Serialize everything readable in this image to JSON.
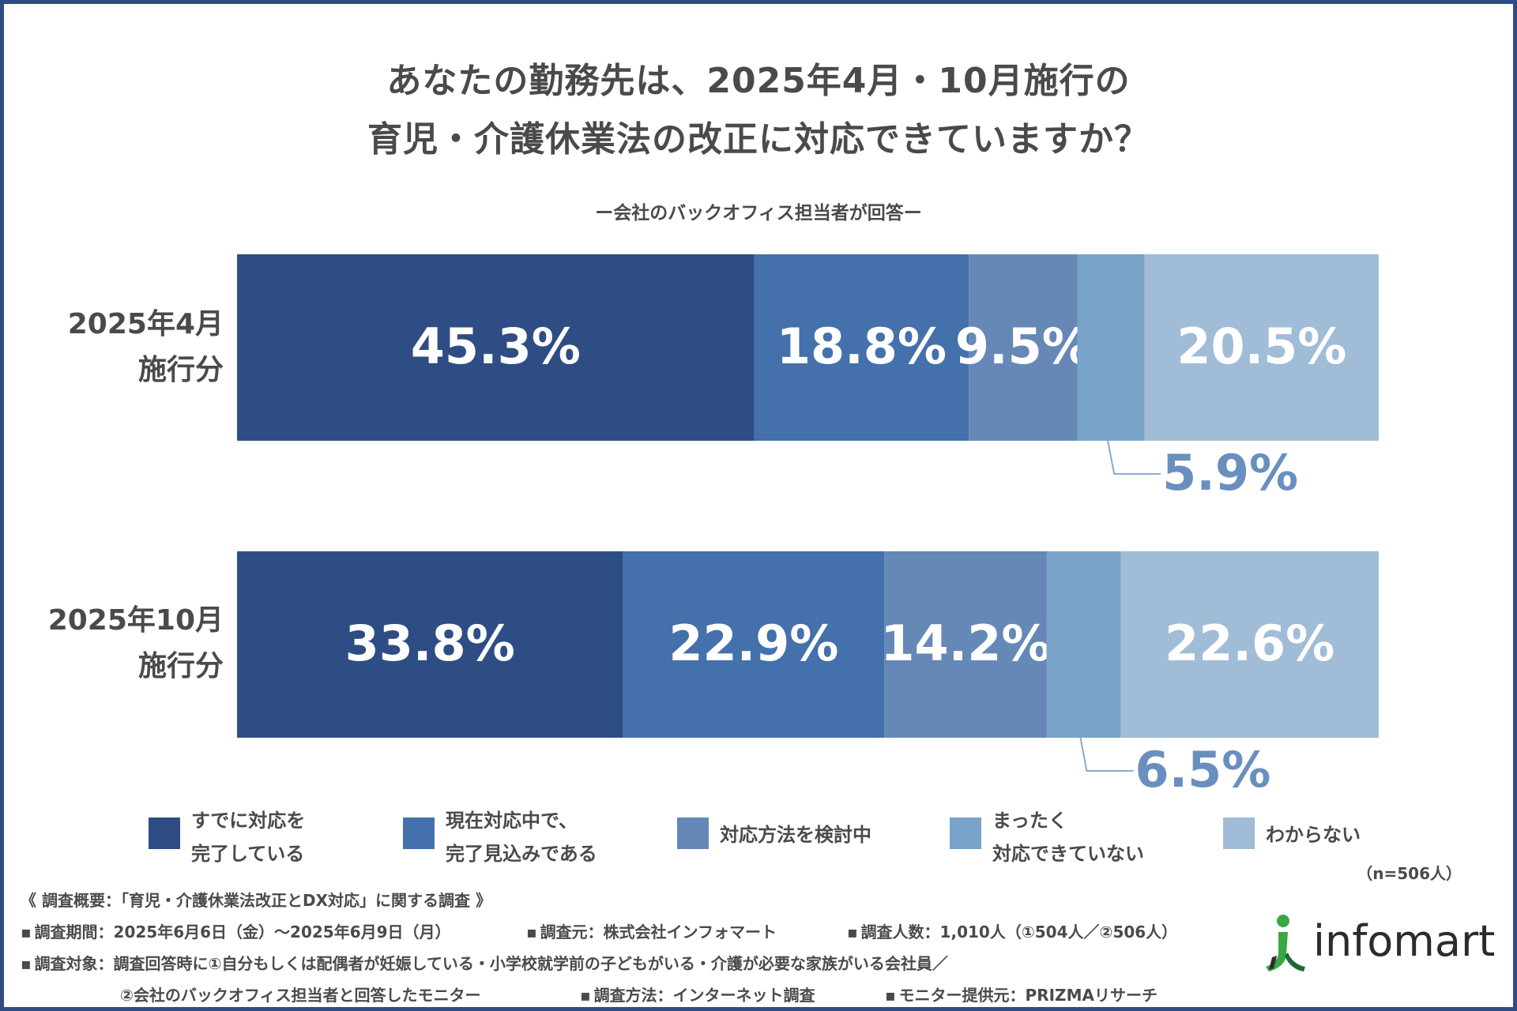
{
  "title": {
    "line1": "あなたの勤務先は、2025年4月・10月施行の",
    "line2": "育児・介護休業法の改正に対応できていますか？"
  },
  "subtitle": "ー会社のバックオフィス担当者が回答ー",
  "rows": [
    {
      "label_line1": "2025年4月",
      "label_line2": "施行分"
    },
    {
      "label_line1": "2025年10月",
      "label_line2": "施行分"
    }
  ],
  "colors": [
    "#2e4d84",
    "#4470ab",
    "#6588b7",
    "#79a3c8",
    "#a0bcd7"
  ],
  "chart_data": {
    "type": "bar",
    "orientation": "horizontal-stacked-100",
    "title": "あなたの勤務先は、2025年4月・10月施行の育児・介護休業法の改正に対応できていますか？",
    "categories": [
      "2025年4月施行分",
      "2025年10月施行分"
    ],
    "series": [
      {
        "name": "すでに対応を完了している",
        "values": [
          45.3,
          33.8
        ]
      },
      {
        "name": "現在対応中で、完了見込みである",
        "values": [
          18.8,
          22.9
        ]
      },
      {
        "name": "対応方法を検討中",
        "values": [
          9.5,
          14.2
        ]
      },
      {
        "name": "まったく対応できていない",
        "values": [
          5.9,
          6.5
        ]
      },
      {
        "name": "わからない",
        "values": [
          20.5,
          22.6
        ]
      }
    ],
    "value_labels": [
      [
        "45.3%",
        "18.8%",
        "9.5%",
        "5.9%",
        "20.5%"
      ],
      [
        "33.8%",
        "22.9%",
        "14.2%",
        "6.5%",
        "22.6%"
      ]
    ],
    "unit": "%",
    "xlim": [
      0,
      100
    ],
    "legend_position": "bottom"
  },
  "legend": [
    {
      "text": "すでに対応を\n完了している"
    },
    {
      "text": "現在対応中で、\n完了見込みである"
    },
    {
      "text": "対応方法を検討中"
    },
    {
      "text": "まったく\n対応できていない"
    },
    {
      "text": "わからない"
    }
  ],
  "sample_size": "（n=506人）",
  "notes": {
    "heading": "《 調査概要：「育児・介護休業法改正とDX対応」に関する調査 》",
    "period": "調査期間：2025年6月6日（金）～2025年6月9日（月）",
    "source": "調査元：株式会社インフォマート",
    "count": "調査人数：1,010人（①504人／②506人）",
    "target": "調査対象：調査回答時に①自分もしくは配偶者が妊娠している・小学校就学前の子どもがいる・介護が必要な家族がいる会社員／",
    "target_cont": "②会社のバックオフィス担当者と回答したモニター",
    "method": "調査方法：インターネット調査",
    "provider": "モニター提供元：PRIZMAリサーチ"
  },
  "logo": {
    "text": "infomart",
    "icon": "infomart-figure-icon"
  }
}
